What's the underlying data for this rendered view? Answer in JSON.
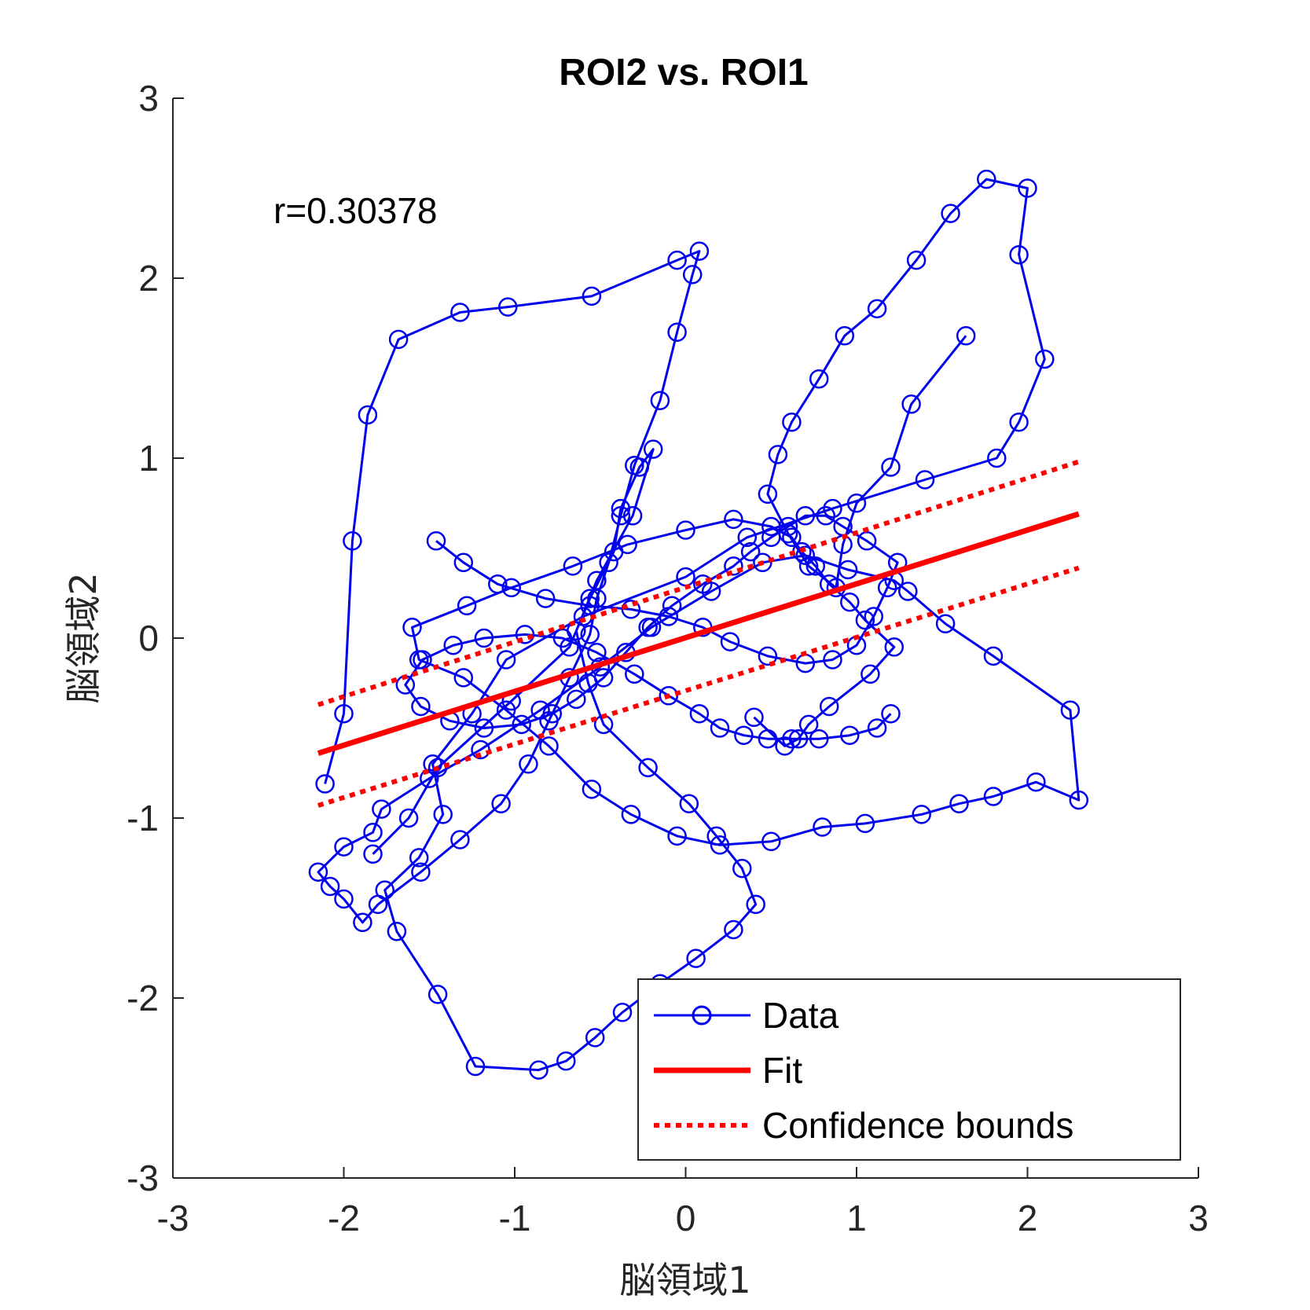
{
  "chart_data": {
    "type": "line",
    "title": "ROI2 vs. ROI1",
    "xlabel": "脳領域1",
    "ylabel": "脳領域2",
    "xlim": [
      -3,
      3
    ],
    "ylim": [
      -3,
      3
    ],
    "xticks": [
      -3,
      -2,
      -1,
      0,
      1,
      2,
      3
    ],
    "yticks": [
      -3,
      -2,
      -1,
      0,
      1,
      2,
      3
    ],
    "grid": false,
    "annotation": "r=0.30378",
    "legend_placement": "bottom-right",
    "legend": {
      "data": "Data",
      "fit": "Fit",
      "bounds": "Confidence bounds"
    },
    "colors": {
      "data": "#0000ee",
      "fit": "#ff0000",
      "bounds": "#ff0000",
      "axis": "#262626"
    },
    "fit": {
      "x": [
        -2.15,
        2.3
      ],
      "y": [
        -0.64,
        0.69
      ]
    },
    "bounds_upper": {
      "x": [
        -2.15,
        2.3
      ],
      "y": [
        -0.37,
        0.98
      ]
    },
    "bounds_lower": {
      "x": [
        -2.15,
        2.3
      ],
      "y": [
        -0.93,
        0.39
      ]
    },
    "series": [
      {
        "x": [
          -1.83,
          -1.62,
          -1.45,
          -1.02,
          -0.68,
          -0.56,
          -0.42,
          -0.38,
          -0.27,
          -0.19,
          -0.31,
          -0.52,
          -0.64,
          -0.57,
          -0.48,
          -0.22,
          0.02,
          0.18,
          0.33,
          0.41,
          0.28,
          0.06,
          -0.15,
          -0.37,
          -0.53,
          -0.7,
          -0.86,
          -1.23,
          -1.45,
          -1.69,
          -1.76,
          -1.56,
          -1.42,
          -1.48,
          -1.25,
          -1.05,
          -0.6,
          0.0,
          0.36,
          0.86,
          1.4,
          1.82,
          1.95,
          2.1,
          1.95,
          2.0,
          1.76,
          1.55,
          1.35,
          1.12,
          0.93,
          0.78,
          0.62,
          0.54,
          0.48,
          0.6,
          0.72,
          0.88,
          0.92,
          1.0,
          1.2,
          1.32,
          1.64
        ],
        "y": [
          -1.2,
          -1.0,
          -0.72,
          -0.35,
          -0.05,
          0.22,
          0.48,
          0.72,
          0.95,
          1.05,
          0.68,
          0.32,
          0.04,
          -0.25,
          -0.48,
          -0.72,
          -0.92,
          -1.1,
          -1.28,
          -1.48,
          -1.62,
          -1.78,
          -1.92,
          -2.08,
          -2.22,
          -2.35,
          -2.4,
          -2.38,
          -1.98,
          -1.63,
          -1.4,
          -1.22,
          -0.98,
          -0.7,
          -0.42,
          -0.12,
          0.12,
          0.34,
          0.56,
          0.72,
          0.88,
          1.0,
          1.2,
          1.55,
          2.13,
          2.5,
          2.55,
          2.36,
          2.1,
          1.83,
          1.68,
          1.44,
          1.2,
          1.02,
          0.8,
          0.58,
          0.4,
          0.28,
          0.52,
          0.75,
          0.95,
          1.3,
          1.68
        ]
      },
      {
        "x": [
          -2.11,
          -2.0,
          -1.95,
          -1.86,
          -1.68,
          -1.32,
          -1.04,
          -0.55,
          -0.05,
          0.08,
          0.04,
          -0.05,
          -0.15,
          -0.3,
          -0.38,
          -0.45,
          -0.52,
          -0.56,
          -0.68,
          -0.8,
          -0.92,
          -1.08,
          -1.32,
          -1.55,
          -1.8,
          -1.89,
          -2.0,
          -2.08,
          -2.15,
          -2.0,
          -1.83,
          -1.78,
          -1.5,
          -1.2,
          -0.85,
          -0.5,
          -0.2,
          0.15,
          0.45,
          0.7,
          0.95,
          1.22,
          1.3,
          1.52,
          1.8,
          2.25,
          2.3,
          2.05,
          1.8,
          1.6,
          1.38,
          1.05,
          0.8,
          0.5,
          0.2,
          -0.05,
          -0.32,
          -0.55,
          -0.8,
          -1.05,
          -1.3,
          -1.56,
          -1.6,
          -1.28,
          -1.02,
          -0.66,
          -0.34,
          0.0,
          0.28,
          0.5,
          0.62,
          0.68,
          0.76,
          0.84,
          0.96,
          1.05,
          1.22,
          1.08,
          0.84,
          0.72,
          0.66,
          0.58,
          0.4
        ],
        "y": [
          -0.81,
          -0.42,
          0.54,
          1.24,
          1.66,
          1.81,
          1.84,
          1.9,
          2.1,
          2.15,
          2.02,
          1.7,
          1.32,
          0.96,
          0.68,
          0.42,
          0.22,
          0.02,
          -0.22,
          -0.46,
          -0.7,
          -0.92,
          -1.12,
          -1.3,
          -1.48,
          -1.58,
          -1.45,
          -1.38,
          -1.3,
          -1.16,
          -1.08,
          -0.95,
          -0.78,
          -0.62,
          -0.4,
          -0.16,
          0.06,
          0.26,
          0.42,
          0.46,
          0.38,
          0.32,
          0.26,
          0.08,
          -0.1,
          -0.4,
          -0.9,
          -0.8,
          -0.88,
          -0.92,
          -0.98,
          -1.03,
          -1.05,
          -1.13,
          -1.15,
          -1.1,
          -0.98,
          -0.84,
          -0.6,
          -0.4,
          -0.22,
          -0.12,
          0.06,
          0.18,
          0.28,
          0.4,
          0.52,
          0.6,
          0.66,
          0.62,
          0.56,
          0.48,
          0.4,
          0.3,
          0.2,
          0.1,
          -0.05,
          -0.2,
          -0.38,
          -0.48,
          -0.56,
          -0.6,
          -0.44
        ]
      },
      {
        "x": [
          -1.46,
          -1.3,
          -1.1,
          -0.82,
          -0.56,
          -0.32,
          -0.1,
          0.1,
          0.26,
          0.48,
          0.7,
          0.86,
          1.0,
          1.1,
          1.18,
          1.24,
          1.06,
          0.92,
          0.82,
          0.7,
          0.6,
          0.5,
          0.38,
          0.28,
          0.1,
          -0.08,
          -0.22,
          -0.35,
          -0.48,
          -0.64,
          -0.78,
          -0.96,
          -1.18,
          -1.38,
          -1.55,
          -1.64,
          -1.54,
          -1.36,
          -1.18,
          -0.94,
          -0.72,
          -0.52,
          -0.3,
          -0.1,
          0.08,
          0.2,
          0.34,
          0.48,
          0.62,
          0.78,
          0.96,
          1.12,
          1.2
        ],
        "y": [
          0.54,
          0.42,
          0.3,
          0.22,
          0.18,
          0.16,
          0.12,
          0.06,
          -0.02,
          -0.1,
          -0.14,
          -0.12,
          -0.04,
          0.12,
          0.28,
          0.42,
          0.54,
          0.62,
          0.68,
          0.68,
          0.62,
          0.56,
          0.48,
          0.4,
          0.3,
          0.18,
          0.06,
          -0.08,
          -0.22,
          -0.34,
          -0.42,
          -0.48,
          -0.5,
          -0.46,
          -0.38,
          -0.26,
          -0.12,
          -0.04,
          0.0,
          0.02,
          0.0,
          -0.08,
          -0.2,
          -0.32,
          -0.42,
          -0.5,
          -0.54,
          -0.56,
          -0.56,
          -0.56,
          -0.54,
          -0.5,
          -0.42
        ]
      }
    ]
  }
}
